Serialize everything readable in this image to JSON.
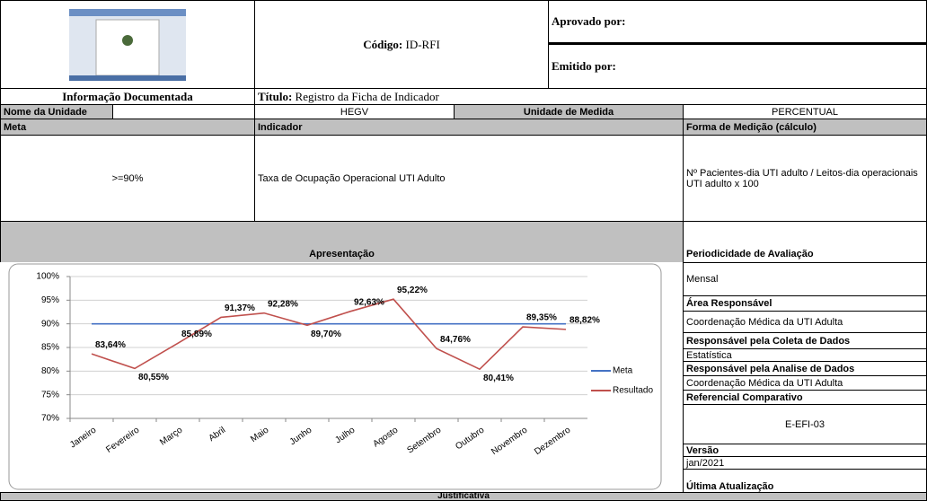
{
  "header": {
    "code_label": "Código:",
    "code": "ID-RFI",
    "approved_by": "Aprovado por:",
    "issued_by": "Emitido por:",
    "doc_info": "Informação Documentada",
    "title_label": "Título:",
    "title": "Registro da Ficha de Indicador"
  },
  "form": {
    "unit_label": "Nome da Unidade",
    "unit": "HEGV",
    "measure_label": "Unidade de Medida",
    "measure": "PERCENTUAL",
    "meta_label": "Meta",
    "indicator_label": "Indicador",
    "method_label": "Forma de Medição (cálculo)",
    "meta": ">=90%",
    "indicator": "Taxa de Ocupação Operacional UTI Adulto",
    "method": "Nº Pacientes-dia UTI adulto / Leitos-dia operacionais UTI adulto x 100",
    "presentation_label": "Apresentação",
    "periodicity_label": "Periodicidade de Avaliação",
    "periodicity": "Mensal",
    "area_label": "Área Responsável",
    "area": "Coordenação Médica da UTI Adulta",
    "collection_label": "Responsável pela Coleta de Dados",
    "collection": "Estatística",
    "analysis_label": "Responsável pela Analise de Dados",
    "analysis": "Coordenação Médica da UTI Adulta",
    "reference_label": "Referencial Comparativo",
    "reference": "E-EFI-03",
    "version_label": "Versão",
    "version": "jan/2021",
    "update_label": "Última Atualização",
    "justification_label": "Justificativa"
  },
  "chart_data": {
    "type": "line",
    "categories": [
      "Janeiro",
      "Fevereiro",
      "Março",
      "Abril",
      "Maio",
      "Junho",
      "Julho",
      "Agosto",
      "Setembro",
      "Outubro",
      "Novembro",
      "Dezembro"
    ],
    "series": [
      {
        "name": "Meta",
        "color": "#4472c4",
        "values": [
          90,
          90,
          90,
          90,
          90,
          90,
          90,
          90,
          90,
          90,
          90,
          90
        ]
      },
      {
        "name": "Resultado",
        "color": "#c0504d",
        "values": [
          83.64,
          80.55,
          85.89,
          91.37,
          92.28,
          89.7,
          92.63,
          95.22,
          84.76,
          80.41,
          89.35,
          88.82
        ],
        "value_labels": [
          "83,64%",
          "80,55%",
          "85,89%",
          "91,37%",
          "92,28%",
          "89,70%",
          "92,63%",
          "95,22%",
          "84,76%",
          "80,41%",
          "89,35%",
          "88,82%"
        ]
      }
    ],
    "ylim": [
      70,
      100
    ],
    "yticks": [
      {
        "value": 70,
        "label": "70%"
      },
      {
        "value": 75,
        "label": "75%"
      },
      {
        "value": 80,
        "label": "80%"
      },
      {
        "value": 85,
        "label": "85%"
      },
      {
        "value": 90,
        "label": "90%"
      },
      {
        "value": 95,
        "label": "95%"
      },
      {
        "value": 100,
        "label": "100%"
      }
    ],
    "grid": true,
    "legend": "right"
  }
}
